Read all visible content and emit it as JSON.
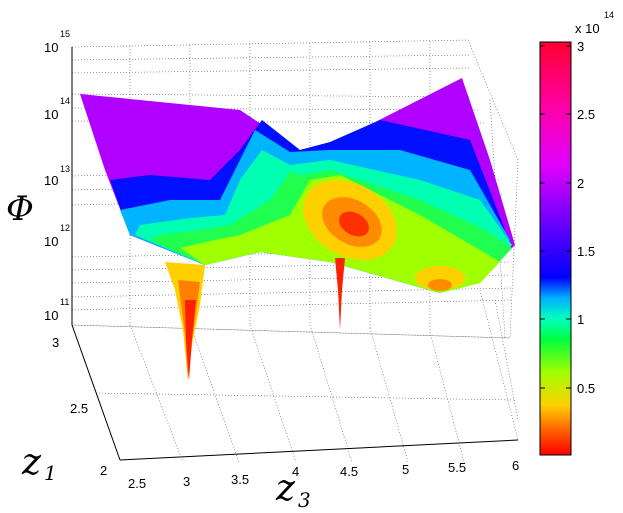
{
  "chart_data": {
    "type": "surface",
    "zlabel": "Φ",
    "xlabel": "z",
    "xlabel_sub": "3",
    "ylabel": "z",
    "ylabel_sub": "1",
    "z_scale": "log",
    "z_ticks": [
      {
        "base": "10",
        "exp": "11"
      },
      {
        "base": "10",
        "exp": "12"
      },
      {
        "base": "10",
        "exp": "13"
      },
      {
        "base": "10",
        "exp": "14"
      },
      {
        "base": "10",
        "exp": "15"
      }
    ],
    "x_ticks": [
      "2.5",
      "3",
      "3.5",
      "4",
      "4.5",
      "5",
      "5.5",
      "6"
    ],
    "y_ticks": [
      "2",
      "2.5",
      "3"
    ],
    "xlim": [
      2.5,
      6
    ],
    "ylim": [
      2,
      3
    ],
    "grid": true,
    "colorbar": {
      "multiplier_base": "x 10",
      "multiplier_exp": "14",
      "ticks": [
        "0.5",
        "1",
        "1.5",
        "2",
        "2.5",
        "3"
      ],
      "range": [
        0,
        3
      ],
      "colormap": "hsv",
      "placement": "right"
    },
    "minima": [
      {
        "z3": 3.0,
        "z1": 2.55
      },
      {
        "z3": 4.25,
        "z1": 2.75
      }
    ]
  }
}
